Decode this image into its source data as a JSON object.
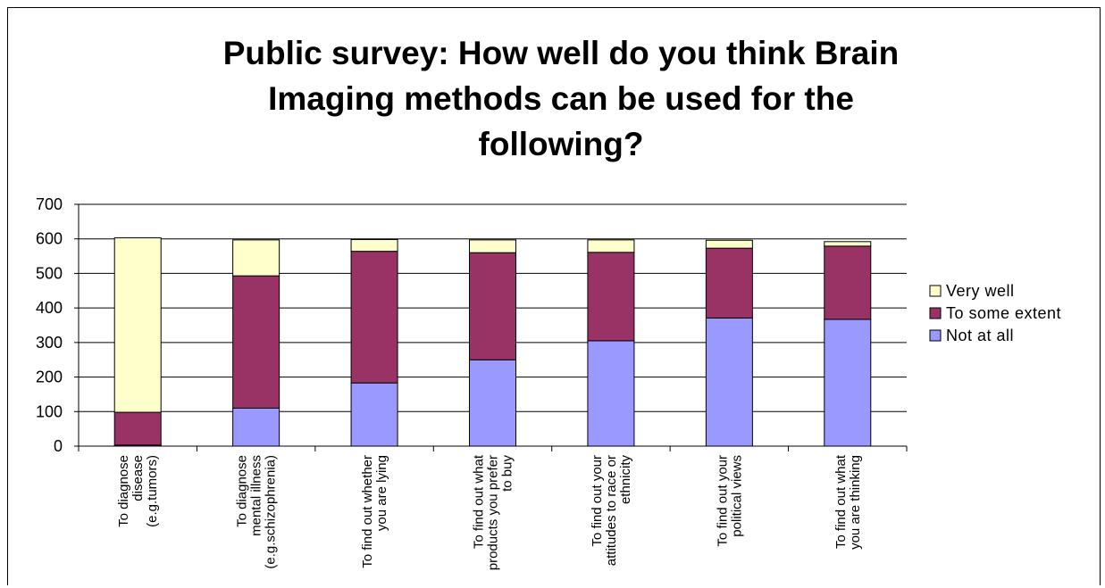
{
  "chart_data": {
    "type": "bar",
    "stacked": true,
    "title_lines": [
      "Public survey: How well do you think Brain",
      "Imaging methods can be used for the",
      "following?"
    ],
    "categories": [
      [
        "To diagnose",
        "disease",
        "(e.g.tumors)"
      ],
      [
        "To diagnose",
        "mental illness",
        "(e.g.schizophrenia)"
      ],
      [
        "To find out whether",
        "you are lying"
      ],
      [
        "To find out what",
        "products you prefer",
        "to buy"
      ],
      [
        "To find out your",
        "attitudes to race or",
        "ethnicity"
      ],
      [
        "To find out your",
        "political views"
      ],
      [
        "To find out what",
        "you are thinking"
      ]
    ],
    "series": [
      {
        "name": "Not at all",
        "color": "#9999ff",
        "values": [
          3,
          110,
          183,
          250,
          305,
          371,
          367
        ]
      },
      {
        "name": "To some extent",
        "color": "#993366",
        "values": [
          95,
          383,
          381,
          310,
          256,
          202,
          212
        ]
      },
      {
        "name": "Very well",
        "color": "#ffffcc",
        "values": [
          505,
          104,
          34,
          37,
          36,
          23,
          13
        ]
      }
    ],
    "legend_order": [
      "Very well",
      "To some extent",
      "Not at all"
    ],
    "legend_position": "right",
    "y_ticks": [
      "0",
      "100",
      "200",
      "300",
      "400",
      "500",
      "600",
      "700"
    ],
    "ylim": [
      0,
      700
    ],
    "grid": true
  }
}
